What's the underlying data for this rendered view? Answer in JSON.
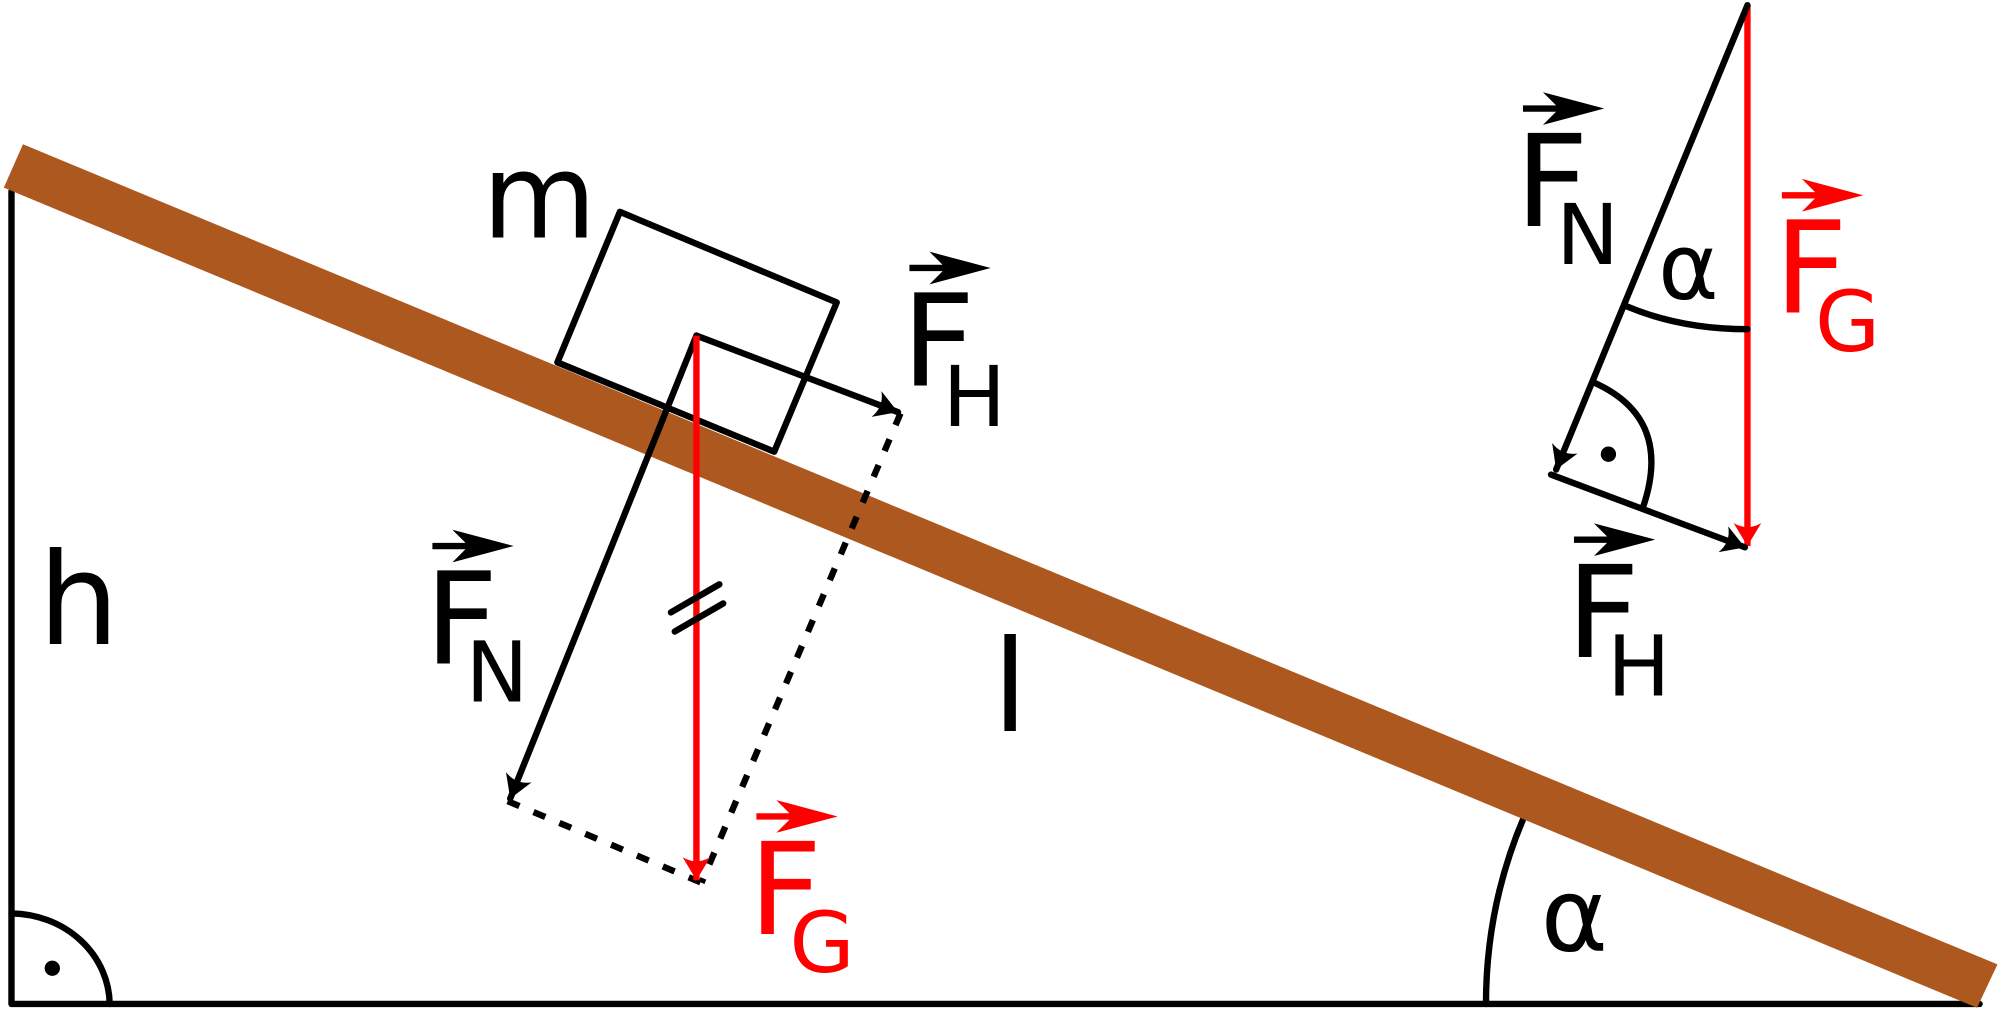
{
  "labels": {
    "mass": "m",
    "height": "h",
    "length": "l",
    "angle": "α"
  },
  "forces": [
    {
      "symbol": "F",
      "subscript": "N"
    },
    {
      "symbol": "F",
      "subscript": "H"
    },
    {
      "symbol": "F",
      "subscript": "G"
    }
  ]
}
